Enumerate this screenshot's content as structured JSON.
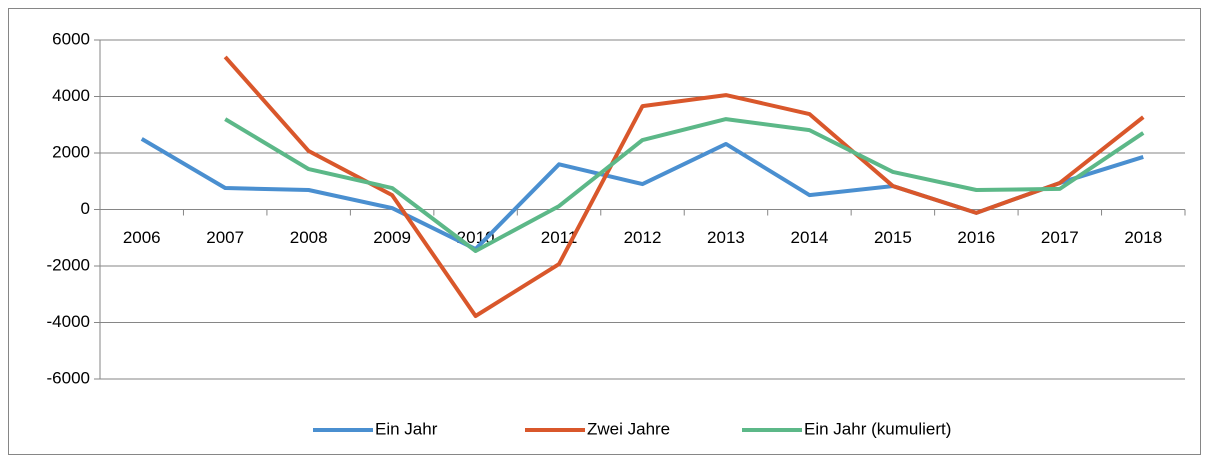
{
  "chart_data": {
    "type": "line",
    "categories": [
      "2006",
      "2007",
      "2008",
      "2009",
      "2010",
      "2011",
      "2012",
      "2013",
      "2014",
      "2015",
      "2016",
      "2017",
      "2018"
    ],
    "series": [
      {
        "name": "Ein Jahr",
        "color": "#4a8fd0",
        "values": [
          2500,
          760,
          690,
          50,
          -1400,
          1600,
          900,
          2320,
          510,
          830,
          -120,
          940,
          1860
        ]
      },
      {
        "name": "Zwei Jahre",
        "color": "#d9572b",
        "values": [
          null,
          5400,
          2070,
          510,
          -3770,
          -1930,
          3660,
          4050,
          3380,
          830,
          -120,
          940,
          3270
        ]
      },
      {
        "name": "Ein Jahr (kumuliert)",
        "color": "#5cb888",
        "values": [
          null,
          3200,
          1430,
          760,
          -1470,
          120,
          2460,
          3200,
          2810,
          1330,
          690,
          730,
          2710
        ]
      }
    ],
    "ylim": [
      -6000,
      6000
    ],
    "yticks": [
      -6000,
      -4000,
      -2000,
      0,
      2000,
      4000,
      6000
    ],
    "grid": true,
    "legend": "bottom"
  }
}
